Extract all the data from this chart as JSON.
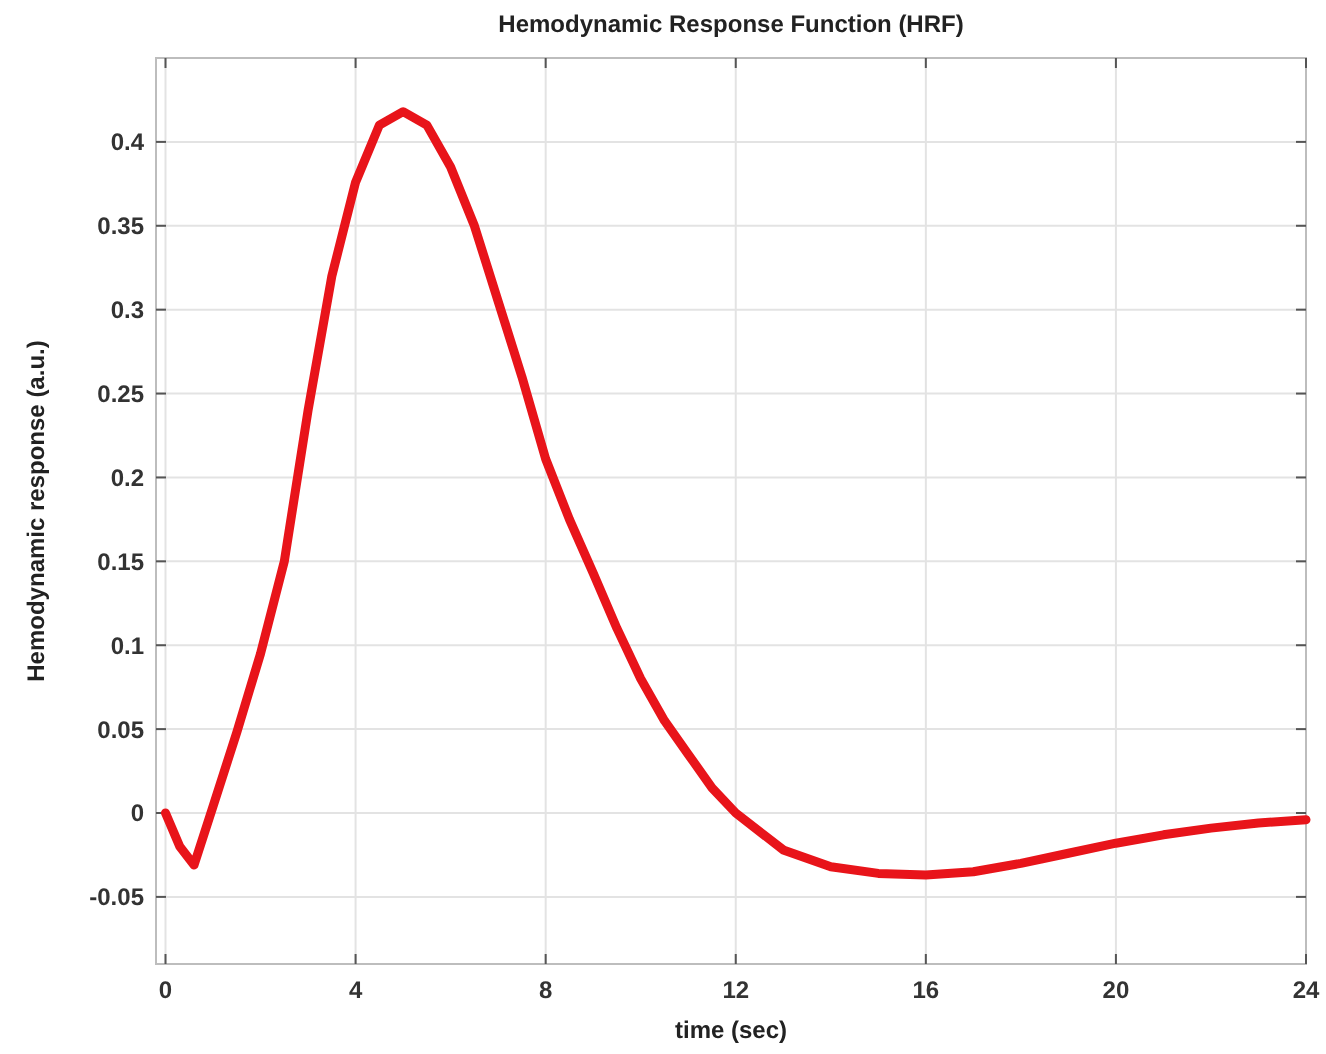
{
  "chart_data": {
    "type": "line",
    "title": "Hemodynamic Response Function (HRF)",
    "xlabel": "time (sec)",
    "ylabel": "Hemodynamic response (a.u.)",
    "xlim": [
      -0.2,
      24
    ],
    "xticks": [
      0,
      4,
      8,
      12,
      16,
      20,
      24
    ],
    "ylim": [
      -0.09,
      0.45
    ],
    "yticks": [
      -0.05,
      0,
      0.05,
      0.1,
      0.15,
      0.2,
      0.25,
      0.3,
      0.35,
      0.4
    ],
    "grid": true,
    "x": [
      0,
      0.3,
      0.6,
      1,
      1.5,
      2,
      2.5,
      3,
      3.5,
      4,
      4.5,
      5,
      5.5,
      6,
      6.5,
      7,
      7.5,
      8,
      8.5,
      9,
      9.5,
      10,
      10.5,
      11,
      11.5,
      12,
      13,
      14,
      15,
      16,
      17,
      18,
      19,
      20,
      21,
      22,
      23,
      24
    ],
    "series": [
      {
        "color": "#e8141a",
        "values": [
          0,
          -0.02,
          -0.031,
          0.004,
          0.048,
          0.095,
          0.15,
          0.24,
          0.32,
          0.376,
          0.41,
          0.418,
          0.41,
          0.385,
          0.35,
          0.305,
          0.26,
          0.211,
          0.175,
          0.143,
          0.11,
          0.08,
          0.055,
          0.035,
          0.015,
          0,
          -0.022,
          -0.032,
          -0.036,
          -0.037,
          -0.035,
          -0.03,
          -0.024,
          -0.018,
          -0.013,
          -0.009,
          -0.006,
          -0.004
        ]
      }
    ]
  }
}
